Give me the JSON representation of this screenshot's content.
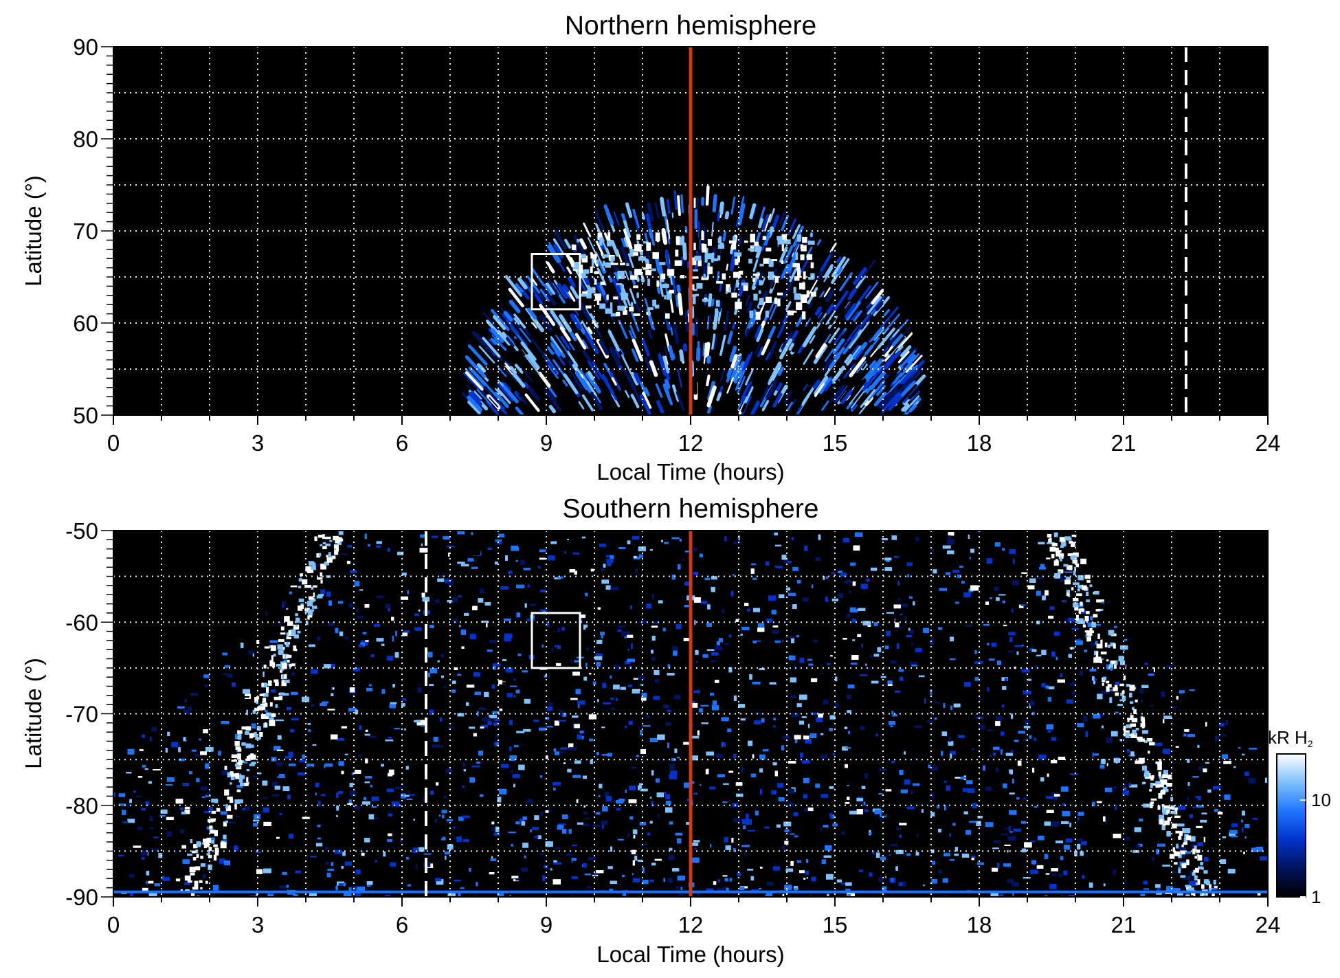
{
  "chart_data": [
    {
      "type": "heatmap",
      "title": "Northern hemisphere",
      "xlabel": "Local Time (hours)",
      "ylabel": "Latitude (°)",
      "xlim": [
        0,
        24
      ],
      "ylim": [
        50,
        90
      ],
      "xticks": [
        "0",
        "3",
        "6",
        "9",
        "12",
        "15",
        "18",
        "21",
        "24"
      ],
      "yticks": [
        "50",
        "60",
        "70",
        "80",
        "90"
      ],
      "grid": true,
      "background_color": "#000000",
      "noon_line": {
        "x": 12,
        "color": "#d03a1a"
      },
      "dashed_line": {
        "x": 22.3,
        "color": "#ffffff"
      },
      "box": {
        "x0": 8.7,
        "x1": 9.7,
        "y0": 61.5,
        "y1": 67.5,
        "color": "#ffffff"
      },
      "emission_region": {
        "x_min": 7.6,
        "x_max": 16.6,
        "peak_latitude": 73
      }
    },
    {
      "type": "heatmap",
      "title": "Southern hemisphere",
      "xlabel": "Local Time (hours)",
      "ylabel": "Latitude (°)",
      "xlim": [
        0,
        24
      ],
      "ylim": [
        -90,
        -50
      ],
      "xticks": [
        "0",
        "3",
        "6",
        "9",
        "12",
        "15",
        "18",
        "21",
        "24"
      ],
      "yticks": [
        "-50",
        "-60",
        "-70",
        "-80",
        "-90"
      ],
      "grid": true,
      "background_color": "#000000",
      "noon_line": {
        "x": 12,
        "color": "#d03a1a"
      },
      "dashed_line": {
        "x": 6.5,
        "color": "#ffffff"
      },
      "box": {
        "x0": 8.7,
        "x1": 9.7,
        "y0": -65,
        "y1": -59,
        "color": "#ffffff"
      },
      "colorbar": {
        "label_prefix": "kR H",
        "label_subscript": "2",
        "ticks": [
          "1",
          "10"
        ],
        "scale": "log",
        "colors": [
          "#000000",
          "#00135e",
          "#0033cc",
          "#1f74ff",
          "#7fc0ff",
          "#ffffff"
        ]
      }
    }
  ]
}
